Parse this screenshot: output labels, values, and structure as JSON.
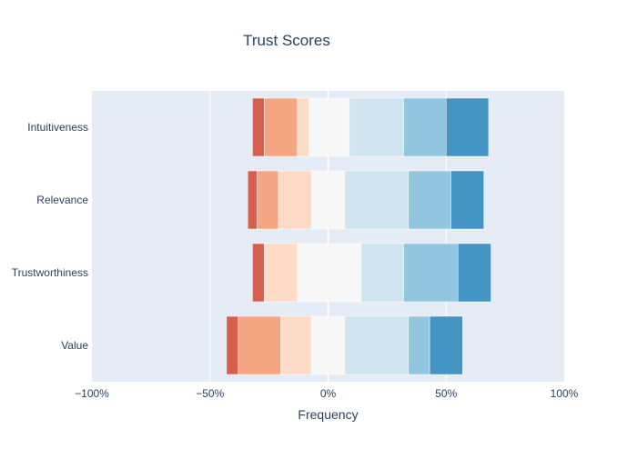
{
  "chart_data": {
    "type": "bar",
    "orientation": "horizontal",
    "stacked": "diverging",
    "title": "Trust Scores",
    "xlabel": "Frequency",
    "ylabel": "",
    "xlim": [
      -100,
      100
    ],
    "x_ticks": [
      {
        "value": -100,
        "label": "−100%"
      },
      {
        "value": -50,
        "label": "−50%"
      },
      {
        "value": 0,
        "label": "0%"
      },
      {
        "value": 50,
        "label": "50%"
      },
      {
        "value": 100,
        "label": "100%"
      }
    ],
    "categories": [
      "Intuitiveness",
      "Relevance",
      "Trustworthiness",
      "Value"
    ],
    "grid": true,
    "legend": "none",
    "series": [
      {
        "color": "#d6604d",
        "starts": [
          -32,
          -34,
          -32,
          -43
        ],
        "values": [
          5,
          4,
          5,
          5
        ]
      },
      {
        "color": "#f4a582",
        "starts": [
          -27,
          -30,
          -27,
          -38
        ],
        "values": [
          14,
          9,
          0,
          18
        ]
      },
      {
        "color": "#fddbc7",
        "starts": [
          -13,
          -21,
          -27,
          -20
        ],
        "values": [
          5,
          14,
          14,
          14
        ]
      },
      {
        "color": "#f7f7f7",
        "starts": [
          -8,
          -7,
          -13,
          -7
        ],
        "values": [
          17,
          14,
          27,
          14
        ]
      },
      {
        "color": "#d1e5f0",
        "starts": [
          9,
          7,
          14,
          7
        ],
        "values": [
          23,
          27,
          18,
          27
        ]
      },
      {
        "color": "#92c5de",
        "starts": [
          32,
          34,
          32,
          34
        ],
        "values": [
          18,
          18,
          23,
          9
        ]
      },
      {
        "color": "#4393c3",
        "starts": [
          50,
          52,
          55,
          43
        ],
        "values": [
          18,
          14,
          14,
          14
        ]
      }
    ]
  }
}
